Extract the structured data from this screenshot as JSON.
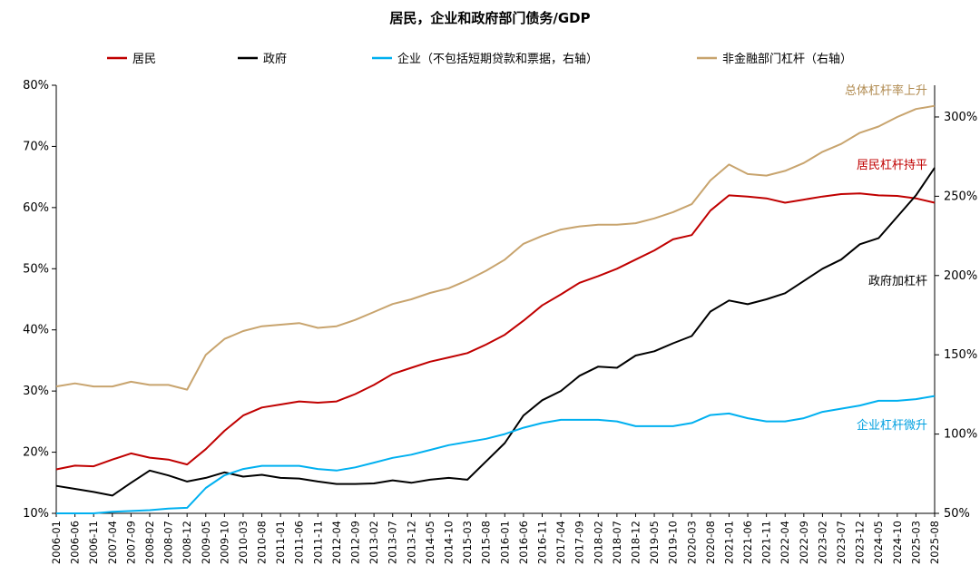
{
  "chart_data": {
    "type": "line",
    "title": "居民，企业和政府部门债务/GDP",
    "x_ticks": [
      "2006-01",
      "2006-06",
      "2006-11",
      "2007-04",
      "2007-09",
      "2008-02",
      "2008-07",
      "2008-12",
      "2009-05",
      "2009-10",
      "2010-03",
      "2010-08",
      "2011-01",
      "2011-06",
      "2011-11",
      "2012-04",
      "2012-09",
      "2013-02",
      "2013-07",
      "2013-12",
      "2014-05",
      "2014-10",
      "2015-03",
      "2015-08",
      "2016-01",
      "2016-06",
      "2016-11",
      "2017-04",
      "2017-09",
      "2018-02",
      "2018-07",
      "2018-12",
      "2019-05",
      "2019-10",
      "2020-03",
      "2020-08",
      "2021-01",
      "2021-06",
      "2021-11",
      "2022-04",
      "2022-09",
      "2023-02",
      "2023-07",
      "2023-12",
      "2024-05",
      "2024-10",
      "2025-03",
      "2025-08"
    ],
    "y_left": {
      "ylim": [
        10,
        80
      ],
      "ticks": [
        "10%",
        "20%",
        "30%",
        "40%",
        "50%",
        "60%",
        "70%",
        "80%"
      ],
      "unit": "%"
    },
    "y_right": {
      "ylim": [
        50,
        320
      ],
      "ticks": [
        "50%",
        "100%",
        "150%",
        "200%",
        "250%",
        "300%"
      ],
      "unit": "%"
    },
    "legend_position": "top",
    "series": [
      {
        "name": "居民",
        "axis": "left",
        "color": "#c00000",
        "points": [
          [
            "2006-01",
            17.2
          ],
          [
            "2006-06",
            17.8
          ],
          [
            "2006-11",
            17.7
          ],
          [
            "2007-04",
            18.8
          ],
          [
            "2007-09",
            19.8
          ],
          [
            "2008-02",
            19.1
          ],
          [
            "2008-07",
            18.8
          ],
          [
            "2008-12",
            18.0
          ],
          [
            "2009-05",
            20.5
          ],
          [
            "2009-10",
            23.5
          ],
          [
            "2010-03",
            26.0
          ],
          [
            "2010-08",
            27.3
          ],
          [
            "2011-01",
            27.8
          ],
          [
            "2011-06",
            28.3
          ],
          [
            "2011-11",
            28.1
          ],
          [
            "2012-04",
            28.3
          ],
          [
            "2012-09",
            29.5
          ],
          [
            "2013-02",
            31.0
          ],
          [
            "2013-07",
            32.8
          ],
          [
            "2013-12",
            33.8
          ],
          [
            "2014-05",
            34.8
          ],
          [
            "2014-10",
            35.5
          ],
          [
            "2015-03",
            36.2
          ],
          [
            "2015-08",
            37.6
          ],
          [
            "2016-01",
            39.2
          ],
          [
            "2016-06",
            41.5
          ],
          [
            "2016-11",
            44.0
          ],
          [
            "2017-04",
            45.8
          ],
          [
            "2017-09",
            47.7
          ],
          [
            "2018-02",
            48.8
          ],
          [
            "2018-07",
            50.0
          ],
          [
            "2018-12",
            51.5
          ],
          [
            "2019-05",
            53.0
          ],
          [
            "2019-10",
            54.8
          ],
          [
            "2020-03",
            55.5
          ],
          [
            "2020-08",
            59.5
          ],
          [
            "2021-01",
            62.0
          ],
          [
            "2021-06",
            61.8
          ],
          [
            "2021-11",
            61.5
          ],
          [
            "2022-04",
            60.8
          ],
          [
            "2022-09",
            61.3
          ],
          [
            "2023-02",
            61.8
          ],
          [
            "2023-07",
            62.2
          ],
          [
            "2023-12",
            62.3
          ],
          [
            "2024-05",
            62.0
          ],
          [
            "2024-10",
            61.9
          ],
          [
            "2025-03",
            61.5
          ],
          [
            "2025-08",
            60.8
          ]
        ]
      },
      {
        "name": "政府",
        "axis": "left",
        "color": "#000000",
        "points": [
          [
            "2006-01",
            14.5
          ],
          [
            "2006-06",
            14.0
          ],
          [
            "2006-11",
            13.5
          ],
          [
            "2007-04",
            12.9
          ],
          [
            "2007-09",
            15.0
          ],
          [
            "2008-02",
            17.0
          ],
          [
            "2008-07",
            16.2
          ],
          [
            "2008-12",
            15.2
          ],
          [
            "2009-05",
            15.8
          ],
          [
            "2009-10",
            16.7
          ],
          [
            "2010-03",
            16.0
          ],
          [
            "2010-08",
            16.3
          ],
          [
            "2011-01",
            15.8
          ],
          [
            "2011-06",
            15.7
          ],
          [
            "2011-11",
            15.2
          ],
          [
            "2012-04",
            14.8
          ],
          [
            "2012-09",
            14.8
          ],
          [
            "2013-02",
            14.9
          ],
          [
            "2013-07",
            15.4
          ],
          [
            "2013-12",
            15.0
          ],
          [
            "2014-05",
            15.5
          ],
          [
            "2014-10",
            15.8
          ],
          [
            "2015-03",
            15.5
          ],
          [
            "2015-08",
            18.5
          ],
          [
            "2016-01",
            21.5
          ],
          [
            "2016-06",
            26.0
          ],
          [
            "2016-11",
            28.5
          ],
          [
            "2017-04",
            30.0
          ],
          [
            "2017-09",
            32.5
          ],
          [
            "2018-02",
            34.0
          ],
          [
            "2018-07",
            33.8
          ],
          [
            "2018-12",
            35.8
          ],
          [
            "2019-05",
            36.5
          ],
          [
            "2019-10",
            37.8
          ],
          [
            "2020-03",
            39.0
          ],
          [
            "2020-08",
            43.0
          ],
          [
            "2021-01",
            44.8
          ],
          [
            "2021-06",
            44.2
          ],
          [
            "2021-11",
            45.0
          ],
          [
            "2022-04",
            46.0
          ],
          [
            "2022-09",
            48.0
          ],
          [
            "2023-02",
            50.0
          ],
          [
            "2023-07",
            51.5
          ],
          [
            "2023-12",
            54.0
          ],
          [
            "2024-05",
            55.0
          ],
          [
            "2024-10",
            58.5
          ],
          [
            "2025-03",
            62.0
          ],
          [
            "2025-08",
            66.5
          ]
        ]
      },
      {
        "name": "企业（不包括短期贷款和票据，右轴）",
        "axis": "right",
        "color": "#00b0f0",
        "points": [
          [
            "2006-01",
            50
          ],
          [
            "2006-06",
            50
          ],
          [
            "2006-11",
            50
          ],
          [
            "2007-04",
            51
          ],
          [
            "2007-09",
            51.5
          ],
          [
            "2008-02",
            52
          ],
          [
            "2008-07",
            53
          ],
          [
            "2008-12",
            53.5
          ],
          [
            "2009-05",
            66
          ],
          [
            "2009-10",
            74
          ],
          [
            "2010-03",
            78
          ],
          [
            "2010-08",
            80
          ],
          [
            "2011-01",
            80
          ],
          [
            "2011-06",
            80
          ],
          [
            "2011-11",
            78
          ],
          [
            "2012-04",
            77
          ],
          [
            "2012-09",
            79
          ],
          [
            "2013-02",
            82
          ],
          [
            "2013-07",
            85
          ],
          [
            "2013-12",
            87
          ],
          [
            "2014-05",
            90
          ],
          [
            "2014-10",
            93
          ],
          [
            "2015-03",
            95
          ],
          [
            "2015-08",
            97
          ],
          [
            "2016-01",
            100
          ],
          [
            "2016-06",
            104
          ],
          [
            "2016-11",
            107
          ],
          [
            "2017-04",
            109
          ],
          [
            "2017-09",
            109
          ],
          [
            "2018-02",
            109
          ],
          [
            "2018-07",
            108
          ],
          [
            "2018-12",
            105
          ],
          [
            "2019-05",
            105
          ],
          [
            "2019-10",
            105
          ],
          [
            "2020-03",
            107
          ],
          [
            "2020-08",
            112
          ],
          [
            "2021-01",
            113
          ],
          [
            "2021-06",
            110
          ],
          [
            "2021-11",
            108
          ],
          [
            "2022-04",
            108
          ],
          [
            "2022-09",
            110
          ],
          [
            "2023-02",
            114
          ],
          [
            "2023-07",
            116
          ],
          [
            "2023-12",
            118
          ],
          [
            "2024-05",
            121
          ],
          [
            "2024-10",
            121
          ],
          [
            "2025-03",
            122
          ],
          [
            "2025-08",
            124
          ]
        ]
      },
      {
        "name": "非金融部门杠杆（右轴）",
        "axis": "right",
        "color": "#c8a46e",
        "points": [
          [
            "2006-01",
            130
          ],
          [
            "2006-06",
            132
          ],
          [
            "2006-11",
            130
          ],
          [
            "2007-04",
            130
          ],
          [
            "2007-09",
            133
          ],
          [
            "2008-02",
            131
          ],
          [
            "2008-07",
            131
          ],
          [
            "2008-12",
            128
          ],
          [
            "2009-05",
            150
          ],
          [
            "2009-10",
            160
          ],
          [
            "2010-03",
            165
          ],
          [
            "2010-08",
            168
          ],
          [
            "2011-01",
            169
          ],
          [
            "2011-06",
            170
          ],
          [
            "2011-11",
            167
          ],
          [
            "2012-04",
            168
          ],
          [
            "2012-09",
            172
          ],
          [
            "2013-02",
            177
          ],
          [
            "2013-07",
            182
          ],
          [
            "2013-12",
            185
          ],
          [
            "2014-05",
            189
          ],
          [
            "2014-10",
            192
          ],
          [
            "2015-03",
            197
          ],
          [
            "2015-08",
            203
          ],
          [
            "2016-01",
            210
          ],
          [
            "2016-06",
            220
          ],
          [
            "2016-11",
            225
          ],
          [
            "2017-04",
            229
          ],
          [
            "2017-09",
            231
          ],
          [
            "2018-02",
            232
          ],
          [
            "2018-07",
            232
          ],
          [
            "2018-12",
            233
          ],
          [
            "2019-05",
            236
          ],
          [
            "2019-10",
            240
          ],
          [
            "2020-03",
            245
          ],
          [
            "2020-08",
            260
          ],
          [
            "2021-01",
            270
          ],
          [
            "2021-06",
            264
          ],
          [
            "2021-11",
            263
          ],
          [
            "2022-04",
            266
          ],
          [
            "2022-09",
            271
          ],
          [
            "2023-02",
            278
          ],
          [
            "2023-07",
            283
          ],
          [
            "2023-12",
            290
          ],
          [
            "2024-05",
            294
          ],
          [
            "2024-10",
            300
          ],
          [
            "2025-03",
            305
          ],
          [
            "2025-08",
            307
          ]
        ]
      }
    ],
    "annotations": [
      {
        "text": "总体杠杆率上升",
        "series": "非金融部门杠杆（右轴）",
        "color": "#b08a4f"
      },
      {
        "text": "居民杠杆持平",
        "series": "居民",
        "color": "#c00000"
      },
      {
        "text": "政府加杠杆",
        "series": "政府",
        "color": "#000000"
      },
      {
        "text": "企业杠杆微升",
        "series": "企业（不包括短期贷款和票据，右轴）",
        "color": "#00a0e0"
      }
    ]
  }
}
